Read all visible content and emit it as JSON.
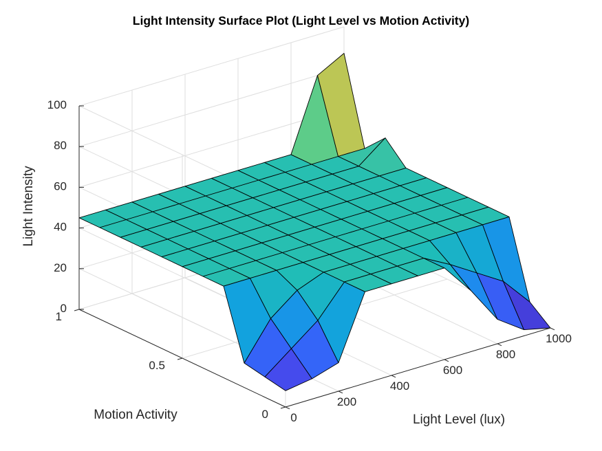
{
  "chart_data": {
    "type": "surface",
    "title": "Light Intensity Surface Plot (Light Level vs Motion Activity)",
    "xlabel": "Light Level (lux)",
    "ylabel": "Motion Activity",
    "zlabel": "Light Intensity",
    "xlim": [
      0,
      1000
    ],
    "ylim": [
      0,
      1
    ],
    "zlim": [
      0,
      100
    ],
    "x_ticks": [
      "0",
      "200",
      "400",
      "600",
      "800",
      "1000"
    ],
    "y_ticks": [
      "0",
      "0.5",
      "1"
    ],
    "z_ticks": [
      "0",
      "20",
      "40",
      "60",
      "80",
      "100"
    ],
    "grid": true,
    "colormap": "parula",
    "x": [
      0,
      100,
      200,
      300,
      400,
      500,
      600,
      700,
      800,
      900,
      1000
    ],
    "y": [
      0,
      0.1,
      0.2,
      0.3,
      0.4,
      0.5,
      0.6,
      0.7,
      0.8,
      0.9,
      1.0
    ],
    "z_by_motion": [
      [
        8,
        10,
        14,
        45,
        45,
        45,
        45,
        30,
        12,
        3,
        0
      ],
      [
        10,
        20,
        30,
        45,
        45,
        45,
        45,
        38,
        30,
        22,
        8
      ],
      [
        12,
        30,
        40,
        45,
        45,
        45,
        45,
        45,
        45,
        45,
        45
      ],
      [
        45,
        45,
        45,
        45,
        45,
        45,
        45,
        45,
        45,
        45,
        45
      ],
      [
        45,
        45,
        45,
        45,
        45,
        45,
        45,
        45,
        45,
        45,
        45
      ],
      [
        45,
        45,
        45,
        45,
        45,
        45,
        45,
        45,
        45,
        45,
        45
      ],
      [
        45,
        45,
        45,
        45,
        45,
        45,
        45,
        45,
        45,
        45,
        45
      ],
      [
        45,
        45,
        45,
        45,
        45,
        45,
        45,
        45,
        45,
        45,
        45
      ],
      [
        45,
        45,
        45,
        45,
        45,
        45,
        45,
        45,
        45,
        45,
        55
      ],
      [
        45,
        45,
        45,
        45,
        45,
        45,
        45,
        45,
        45,
        45,
        45
      ],
      [
        45,
        45,
        45,
        45,
        45,
        45,
        45,
        45,
        45,
        80,
        87
      ]
    ]
  }
}
